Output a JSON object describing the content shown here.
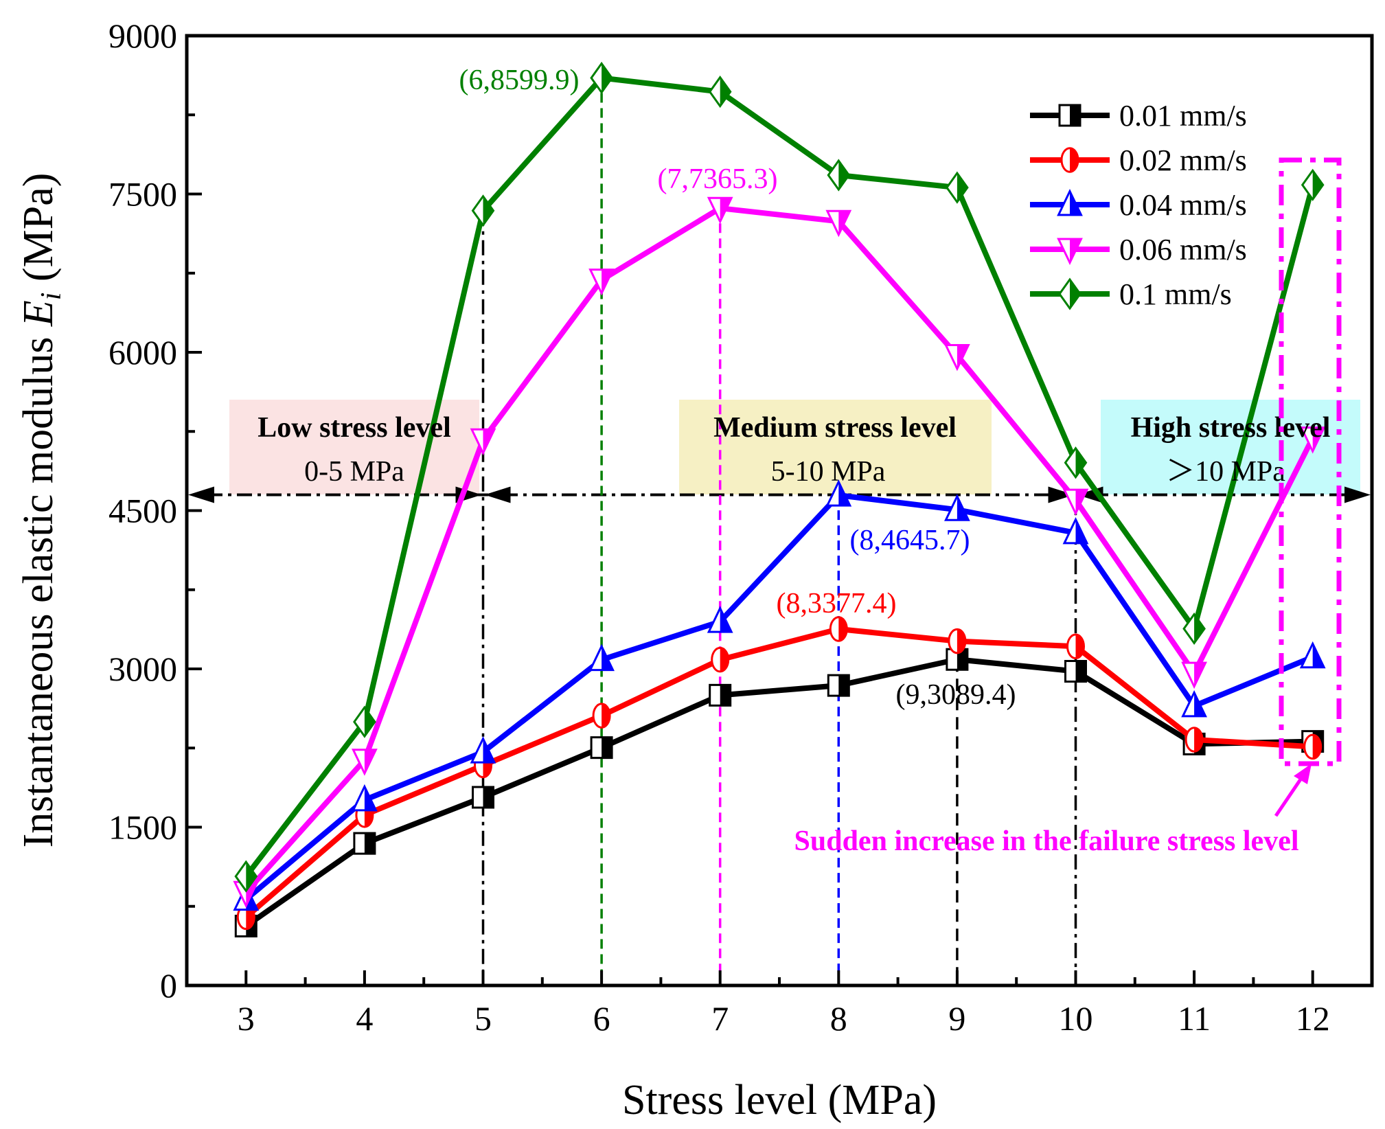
{
  "chart_data": {
    "type": "line",
    "xlabel": "Stress level (MPa)",
    "ylabel_prefix": "Instantaneous elastic modulus ",
    "ylabel_symbol": "E",
    "ylabel_subscript": "i",
    "ylabel_suffix": " (MPa)",
    "xlim": [
      2.5,
      12.5
    ],
    "ylim": [
      0,
      9000
    ],
    "x": [
      3,
      4,
      5,
      6,
      7,
      8,
      9,
      10,
      11,
      12
    ],
    "x_tick_labels": [
      "3",
      "4",
      "5",
      "6",
      "7",
      "8",
      "9",
      "10",
      "11",
      "12"
    ],
    "y_ticks": [
      0,
      1500,
      3000,
      4500,
      6000,
      7500,
      9000
    ],
    "y_tick_labels": [
      "0",
      "1500",
      "3000",
      "4500",
      "6000",
      "7500",
      "9000"
    ],
    "legend_position": "top-right",
    "series": [
      {
        "name": "0.01 mm/s",
        "color": "#000000",
        "marker": "square",
        "values": [
          563,
          1346,
          1783,
          2254,
          2750,
          2843,
          3089.4,
          2977,
          2288,
          2313
        ]
      },
      {
        "name": "0.02 mm/s",
        "color": "#ff0000",
        "marker": "circle",
        "values": [
          648,
          1615,
          2086,
          2557,
          3087,
          3377.4,
          3263,
          3213,
          2330,
          2262
        ]
      },
      {
        "name": "0.04 mm/s",
        "color": "#0000ff",
        "marker": "triangle-up",
        "values": [
          816,
          1758,
          2212,
          3087,
          3448,
          4645.7,
          4508,
          4289,
          2649,
          3112
        ]
      },
      {
        "name": "0.06 mm/s",
        "color": "#ff00ff",
        "marker": "triangle-down",
        "values": [
          883,
          2136,
          5172,
          6686,
          7365.3,
          7241,
          5971,
          4600,
          2960,
          5189
        ]
      },
      {
        "name": "0.1 mm/s",
        "color": "#008000",
        "marker": "diamond",
        "values": [
          1034,
          2498,
          7342,
          8599.9,
          8469,
          7679,
          7561,
          4954,
          3381,
          7586
        ]
      }
    ],
    "regions": [
      {
        "title": "Low stress level",
        "range": "0-5 MPa",
        "color": "#fbe3e3"
      },
      {
        "title": "Medium stress level",
        "range": "5-10 MPa",
        "color": "#f6f0c4"
      },
      {
        "title": "High stress level",
        "range": "＞10 MPa",
        "color": "#c4fbfb"
      }
    ],
    "annotations": {
      "peak_01": "(6,8599.9)",
      "peak_006": "(7,7365.3)",
      "peak_004": "(8,4645.7)",
      "peak_002": "(8,3377.4)",
      "peak_001": "(9,3089.4)",
      "sudden": "Sudden increase in the failure stress level"
    }
  }
}
